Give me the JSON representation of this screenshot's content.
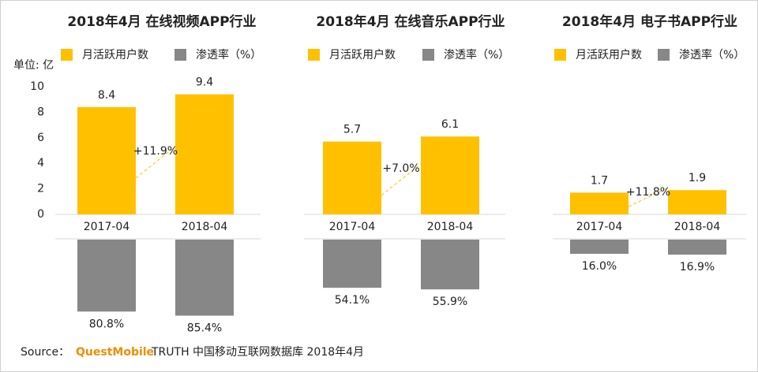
{
  "chart_data": [
    {
      "type": "bar",
      "title": "2018年4月 在线视频APP行业",
      "y_label": "单位: 亿",
      "categories": [
        "2017-04",
        "2018-04"
      ],
      "series": [
        {
          "name": "月活跃用户数",
          "color": "#ffc000",
          "values": [
            8.4,
            9.4
          ]
        },
        {
          "name": "渗透率（%）",
          "color": "#878787",
          "values": [
            80.8,
            85.4
          ],
          "value_labels": [
            "80.8%",
            "85.4%"
          ]
        }
      ],
      "annotation": "+11.9%",
      "ylim": [
        0,
        10
      ],
      "yticks": [
        0,
        2,
        4,
        6,
        8,
        10
      ]
    },
    {
      "type": "bar",
      "title": "2018年4月 在线音乐APP行业",
      "categories": [
        "2017-04",
        "2018-04"
      ],
      "series": [
        {
          "name": "月活跃用户数",
          "color": "#ffc000",
          "values": [
            5.7,
            6.1
          ]
        },
        {
          "name": "渗透率（%）",
          "color": "#878787",
          "values": [
            54.1,
            55.9
          ],
          "value_labels": [
            "54.1%",
            "55.9%"
          ]
        }
      ],
      "annotation": "+7.0%",
      "ylim": [
        0,
        10
      ]
    },
    {
      "type": "bar",
      "title": "2018年4月 电子书APP行业",
      "categories": [
        "2017-04",
        "2018-04"
      ],
      "series": [
        {
          "name": "月活跃用户数",
          "color": "#ffc000",
          "values": [
            1.7,
            1.9
          ]
        },
        {
          "name": "渗透率（%）",
          "color": "#878787",
          "values": [
            16.0,
            16.9
          ],
          "value_labels": [
            "16.0%",
            "16.9%"
          ]
        }
      ],
      "annotation": "+11.8%",
      "ylim": [
        0,
        10
      ]
    }
  ],
  "source": {
    "label": "Source：",
    "brand": "QuestMobile",
    "text": "TRUTH 中国移动互联网数据库 2018年4月"
  }
}
